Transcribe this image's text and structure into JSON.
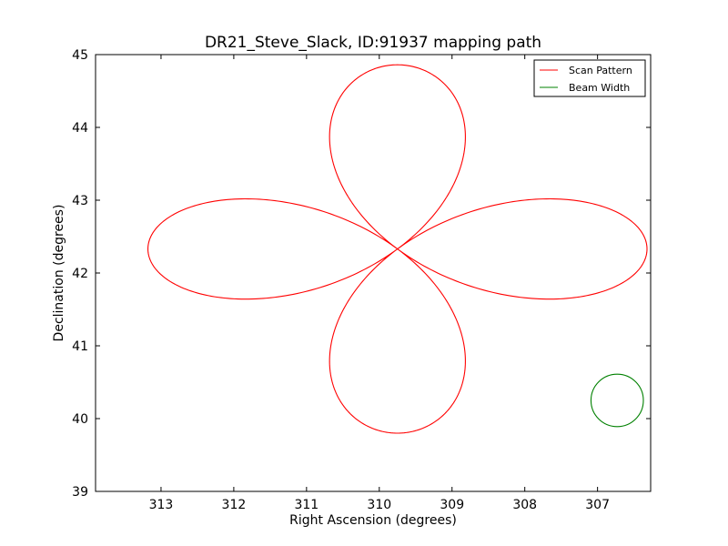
{
  "chart_data": {
    "type": "line",
    "title": "DR21_Steve_Slack, ID:91937 mapping path",
    "xlabel": "Right Ascension (degrees)",
    "ylabel": "Declination (degrees)",
    "xlim": [
      313.9,
      306.27
    ],
    "ylim": [
      39,
      45
    ],
    "x_ticks": [
      313,
      312,
      311,
      310,
      309,
      308,
      307
    ],
    "y_ticks": [
      39,
      40,
      41,
      42,
      43,
      44,
      45
    ],
    "x_axis_inverted": true,
    "grid": false,
    "legend_position": "top-right",
    "colors": {
      "scan": "#ff0000",
      "beam": "#008000"
    },
    "series": [
      {
        "name": "Scan Pattern",
        "type": "rose-curve",
        "center": [
          309.75,
          42.33
        ],
        "amplitude": 2.55,
        "x_range": [
          313.13,
          306.27
        ],
        "y_range": [
          39.8,
          44.86
        ]
      },
      {
        "name": "Beam Width",
        "type": "circle",
        "center": [
          306.73,
          40.25
        ],
        "radius": 0.36
      }
    ]
  }
}
